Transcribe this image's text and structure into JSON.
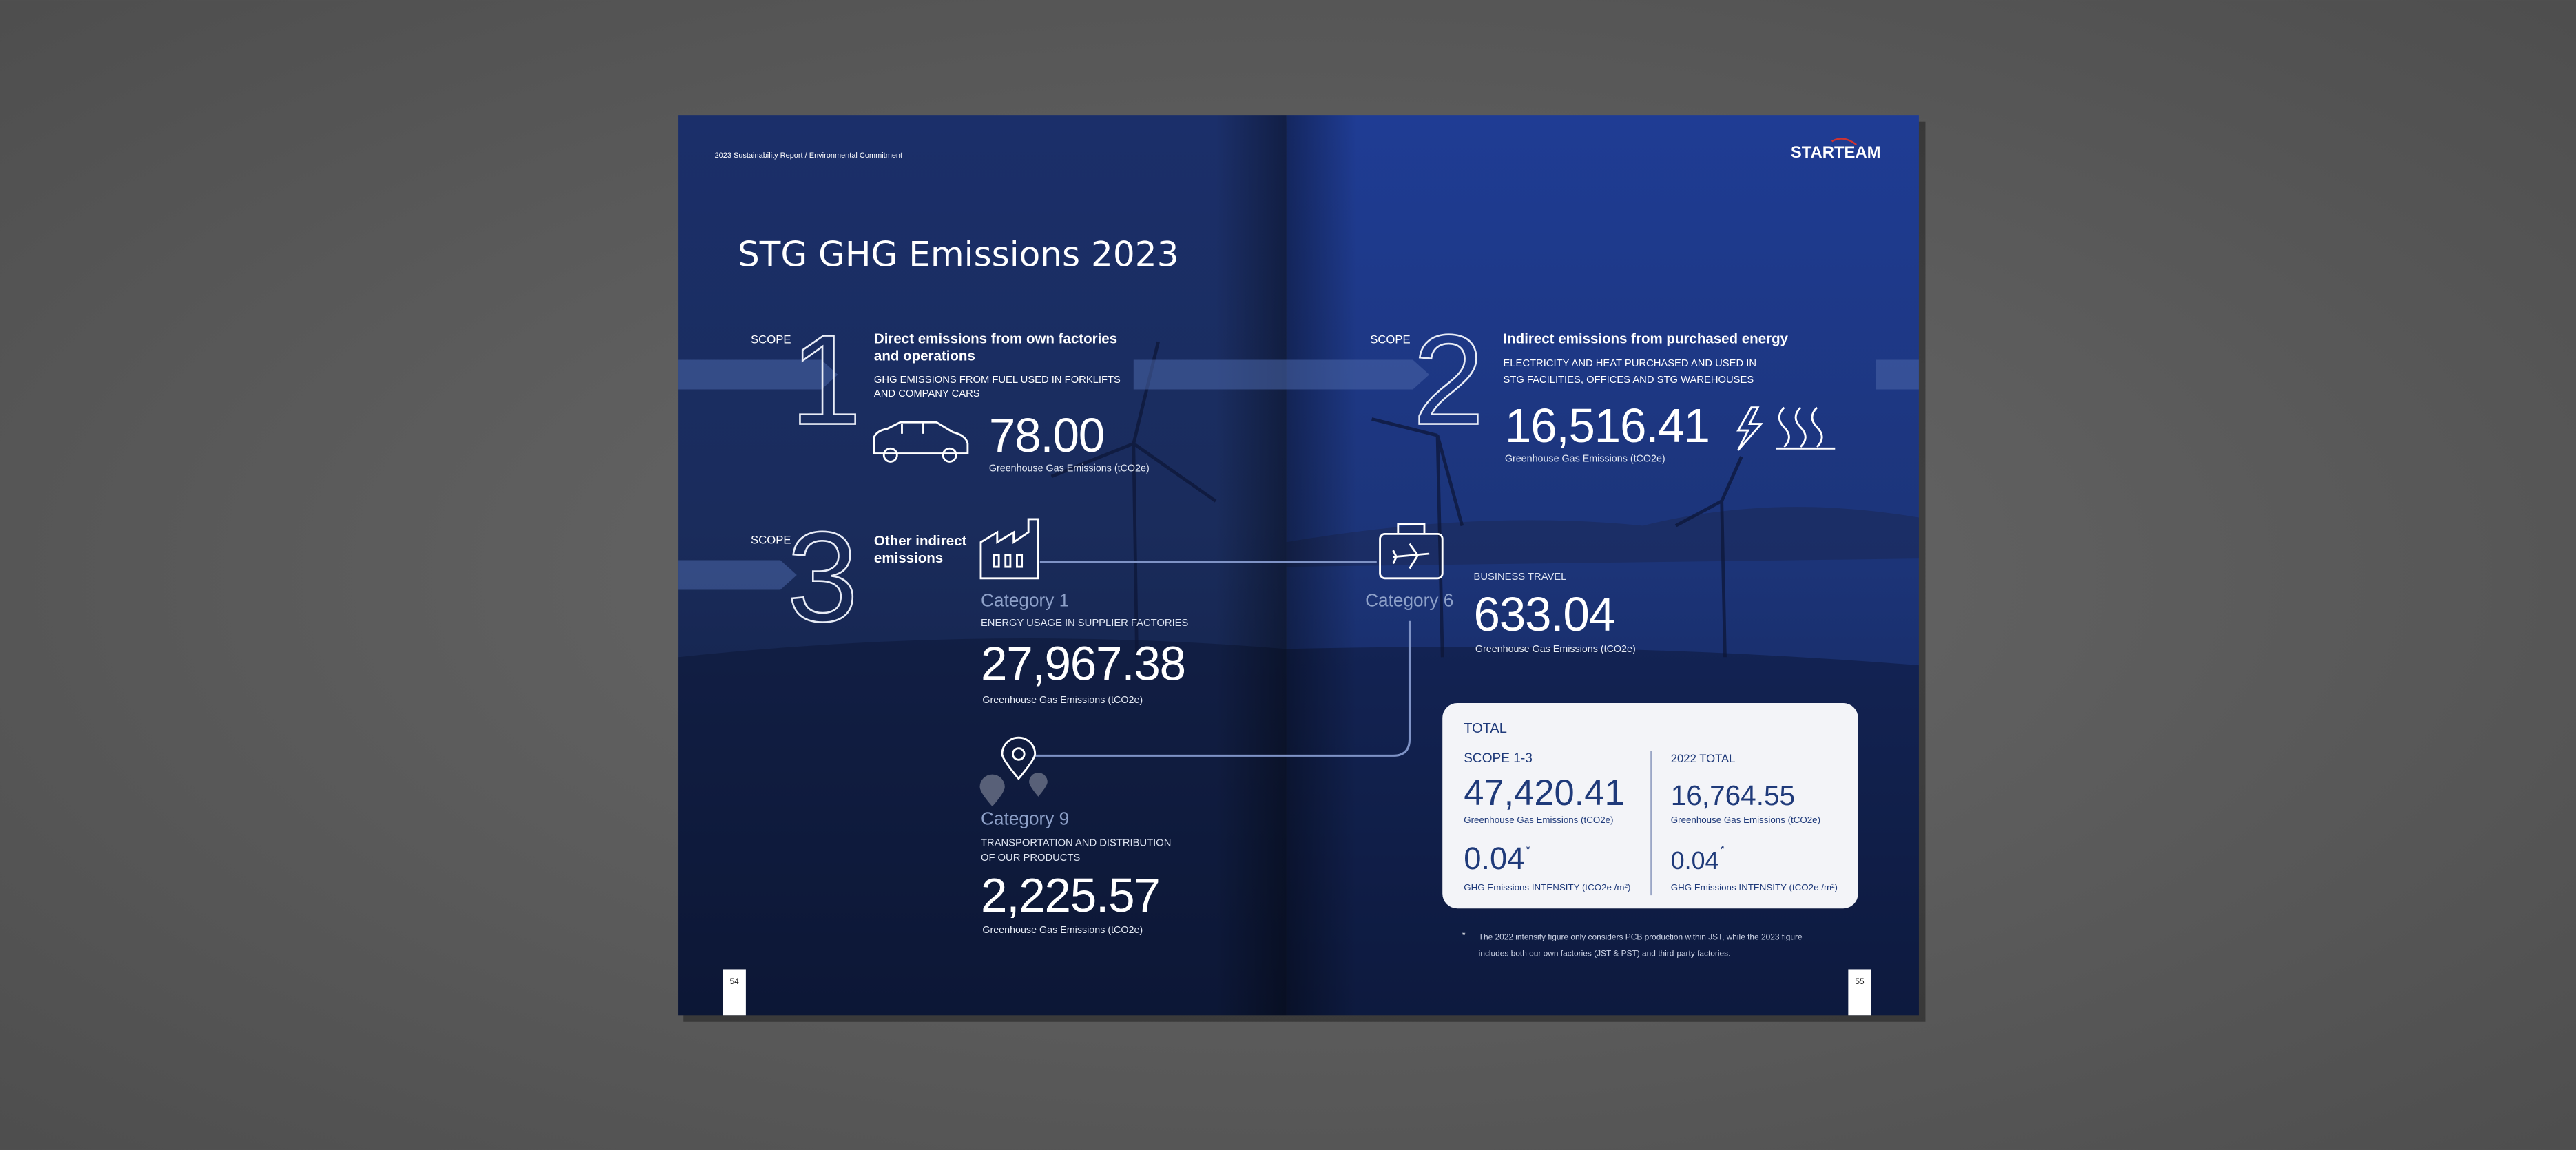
{
  "header": {
    "running_title": "2023 Sustainability Report / Environmental Commitment",
    "logo": "STARTEAM",
    "title": "STG GHG Emissions 2023"
  },
  "scope1": {
    "label": "SCOPE",
    "number": "1",
    "heading": [
      "Direct emissions from own factories",
      "and operations"
    ],
    "description": [
      "GHG EMISSIONS FROM FUEL USED IN FORKLIFTS",
      "AND COMPANY CARS"
    ],
    "value": "78.00",
    "caption": "Greenhouse Gas Emissions (tCO2e)"
  },
  "scope2": {
    "label": "SCOPE",
    "number": "2",
    "heading": [
      "Indirect emissions from purchased energy"
    ],
    "description": [
      "ELECTRICITY AND HEAT PURCHASED AND USED IN",
      "STG FACILITIES, OFFICES AND STG WAREHOUSES"
    ],
    "value": "16,516.41",
    "caption": "Greenhouse Gas Emissions (tCO2e)"
  },
  "scope3": {
    "label": "SCOPE",
    "number": "3",
    "heading": [
      "Other indirect",
      "emissions"
    ],
    "categories": [
      {
        "name": "Category 1",
        "description": [
          "ENERGY USAGE IN SUPPLIER FACTORIES"
        ],
        "value": "27,967.38",
        "caption": "Greenhouse Gas Emissions (tCO2e)"
      },
      {
        "name": "Category 6",
        "description": [
          "BUSINESS TRAVEL"
        ],
        "value": "633.04",
        "caption": "Greenhouse Gas Emissions (tCO2e)"
      },
      {
        "name": "Category 9",
        "description": [
          "TRANSPORTATION AND DISTRIBUTION",
          "OF OUR PRODUCTS"
        ],
        "value": "2,225.57",
        "caption": "Greenhouse Gas Emissions (tCO2e)"
      }
    ]
  },
  "total": {
    "title": "TOTAL",
    "columns": [
      {
        "heading": "SCOPE 1-3",
        "value": "47,420.41",
        "caption": "Greenhouse Gas Emissions (tCO2e)",
        "intensity": "0.04",
        "intensity_mark": "*",
        "intensity_caption": "GHG Emissions INTENSITY (tCO2e /m²)"
      },
      {
        "heading": "2022 TOTAL",
        "value": "16,764.55",
        "caption": "Greenhouse Gas Emissions (tCO2e)",
        "intensity": "0.04",
        "intensity_mark": "*",
        "intensity_caption": "GHG Emissions INTENSITY (tCO2e /m²)"
      }
    ]
  },
  "footnote": {
    "mark": "*",
    "lines": [
      "The 2022 intensity figure only considers PCB production within JST, while the 2023 figure",
      "includes both our own factories (JST & PST) and third-party factories."
    ]
  },
  "pages": [
    "54",
    "55"
  ]
}
